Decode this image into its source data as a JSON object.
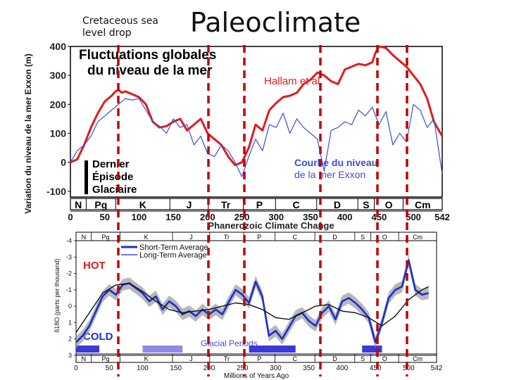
{
  "slide": {
    "caption_line1": "Cretaceous sea",
    "caption_line2": "level drop",
    "title": "Paleoclimate"
  },
  "chart_data": [
    {
      "type": "line",
      "title_line1": "Fluctuations globales",
      "title_line2": "du niveau de la mer",
      "ylabel": "Variation du niveau de la mer Exxon (m)",
      "ylim": [
        -120,
        400
      ],
      "xlim": [
        0,
        542
      ],
      "yticks": [
        "400",
        "300",
        "200",
        "100",
        "0",
        "-100"
      ],
      "xticks": [
        "0",
        "50",
        "100",
        "150",
        "200",
        "250",
        "300",
        "350",
        "400",
        "450",
        "500",
        "542"
      ],
      "periods": [
        "N",
        "Pg",
        "K",
        "J",
        "Tr",
        "P",
        "C",
        "D",
        "S",
        "O",
        "Cm"
      ],
      "period_boundaries": [
        0,
        23,
        66,
        145,
        201,
        252,
        299,
        359,
        419,
        443,
        485,
        542
      ],
      "annotation_glacial_line1": "Dernier",
      "annotation_glacial_line2": "Épisode",
      "annotation_glacial_line3": "Glaciaire",
      "series": [
        {
          "name": "Hallam et al.",
          "color": "#e41a1c",
          "x": [
            0,
            10,
            20,
            30,
            40,
            50,
            60,
            66,
            70,
            75,
            80,
            90,
            100,
            110,
            120,
            130,
            140,
            150,
            160,
            170,
            180,
            190,
            200,
            210,
            220,
            230,
            240,
            250,
            260,
            270,
            280,
            290,
            300,
            310,
            320,
            330,
            340,
            350,
            360,
            370,
            380,
            390,
            400,
            410,
            420,
            430,
            440,
            445,
            450,
            460,
            470,
            480,
            490,
            500,
            510,
            520,
            530,
            542
          ],
          "y": [
            0,
            10,
            60,
            120,
            170,
            210,
            230,
            245,
            250,
            240,
            245,
            235,
            225,
            200,
            140,
            120,
            125,
            140,
            150,
            110,
            130,
            150,
            100,
            80,
            60,
            20,
            -10,
            0,
            50,
            130,
            110,
            180,
            205,
            225,
            230,
            240,
            270,
            285,
            310,
            300,
            280,
            270,
            320,
            330,
            340,
            335,
            345,
            380,
            400,
            395,
            370,
            350,
            330,
            300,
            270,
            220,
            140,
            90
          ]
        },
        {
          "name": "Courbe du niveau de la mer Exxon",
          "color": "#3a4fd8",
          "x": [
            0,
            10,
            20,
            30,
            40,
            50,
            60,
            70,
            80,
            90,
            100,
            110,
            120,
            130,
            140,
            150,
            160,
            170,
            180,
            190,
            200,
            210,
            220,
            230,
            240,
            250,
            260,
            270,
            280,
            290,
            300,
            310,
            320,
            330,
            340,
            350,
            360,
            370,
            380,
            390,
            400,
            410,
            420,
            430,
            440,
            450,
            460,
            470,
            480,
            490,
            500,
            510,
            520,
            530,
            542
          ],
          "y": [
            0,
            40,
            60,
            90,
            140,
            160,
            180,
            200,
            220,
            215,
            220,
            180,
            140,
            125,
            100,
            150,
            120,
            130,
            60,
            90,
            30,
            20,
            60,
            40,
            0,
            -50,
            20,
            80,
            40,
            130,
            120,
            170,
            100,
            150,
            120,
            100,
            80,
            -30,
            110,
            120,
            140,
            130,
            180,
            160,
            190,
            130,
            175,
            60,
            100,
            70,
            200,
            180,
            120,
            150,
            -40
          ]
        }
      ]
    },
    {
      "type": "line",
      "title": "Phanerozoic Climate Change",
      "xlabel": "Millions of Years Ago",
      "ylabel": "δ18O (parts per thousand)",
      "ylim": [
        3,
        -4
      ],
      "xlim": [
        0,
        542
      ],
      "yticks": [
        "-4",
        "-3",
        "-2",
        "-1",
        "0",
        "1",
        "2",
        "3"
      ],
      "xticks": [
        "0",
        "50",
        "100",
        "150",
        "200",
        "250",
        "300",
        "350",
        "400",
        "450",
        "500",
        "542"
      ],
      "periods": [
        "N",
        "Pg",
        "K",
        "J",
        "Tr",
        "P",
        "C",
        "D",
        "S",
        "O",
        "Cm"
      ],
      "period_boundaries": [
        0,
        23,
        66,
        145,
        201,
        252,
        299,
        359,
        419,
        443,
        485,
        542
      ],
      "hot_label": "HOT",
      "cold_label": "COLD",
      "glacial_label": "Glacial Periods",
      "glacial_periods": [
        [
          0,
          35
        ],
        [
          100,
          160
        ],
        [
          260,
          330
        ],
        [
          430,
          460
        ]
      ],
      "series": [
        {
          "name": "Short-Term Average",
          "color": "#1c2fd0",
          "x": [
            0,
            10,
            20,
            30,
            40,
            50,
            60,
            70,
            80,
            90,
            100,
            110,
            120,
            130,
            140,
            150,
            160,
            170,
            180,
            190,
            200,
            210,
            220,
            230,
            240,
            250,
            260,
            270,
            280,
            290,
            300,
            310,
            320,
            330,
            340,
            350,
            360,
            370,
            380,
            390,
            400,
            410,
            420,
            430,
            440,
            450,
            460,
            470,
            480,
            490,
            500,
            510,
            520,
            530
          ],
          "y": [
            2.2,
            1.8,
            1.2,
            0.3,
            -0.6,
            -1.0,
            -0.7,
            -1.3,
            -1.4,
            -1.1,
            -0.8,
            -0.3,
            -0.6,
            0.2,
            -0.3,
            0.0,
            0.5,
            0.3,
            0.6,
            0.2,
            0.5,
            0.2,
            0.5,
            -0.3,
            -1.0,
            -0.7,
            -0.2,
            -1.5,
            -0.6,
            1.8,
            1.5,
            2.0,
            1.3,
            0.6,
            0.4,
            0.9,
            1.2,
            0.4,
            0.0,
            0.8,
            -0.3,
            -0.5,
            -0.2,
            0.2,
            0.7,
            2.2,
            1.0,
            -0.5,
            -1.0,
            -1.2,
            -2.8,
            -1.0,
            -0.7,
            -0.8
          ]
        },
        {
          "name": "Long-Term Average",
          "color": "#111111",
          "x": [
            0,
            20,
            40,
            60,
            80,
            100,
            120,
            140,
            160,
            180,
            200,
            220,
            240,
            260,
            280,
            300,
            320,
            340,
            360,
            380,
            400,
            420,
            440,
            460,
            480,
            500,
            520,
            530
          ],
          "y": [
            1.6,
            0.4,
            -0.8,
            -1.3,
            -1.4,
            -0.9,
            -0.3,
            0.2,
            0.4,
            0.3,
            0.2,
            0.0,
            -0.2,
            -0.1,
            0.2,
            0.7,
            0.8,
            0.4,
            0.0,
            -0.1,
            0.3,
            0.4,
            0.7,
            1.2,
            0.6,
            -0.4,
            -1.0,
            -1.2
          ]
        }
      ]
    }
  ]
}
